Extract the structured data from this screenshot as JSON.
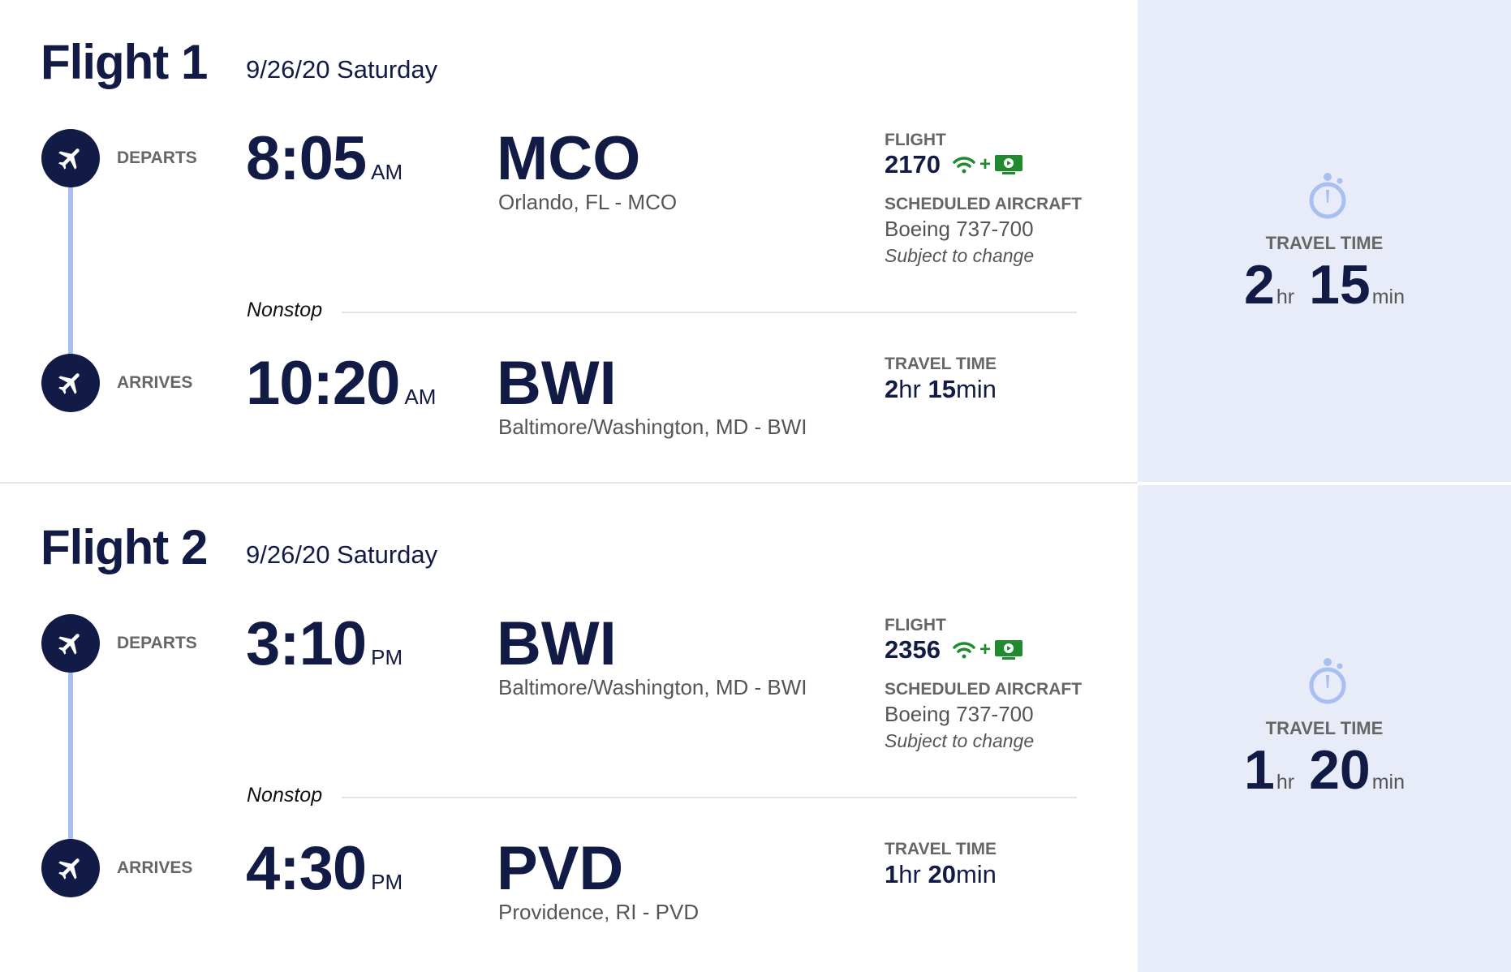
{
  "flights": [
    {
      "title": "Flight 1",
      "date": "9/26/20 Saturday",
      "departs_label": "DEPARTS",
      "arrives_label": "ARRIVES",
      "depart_time": "8:05",
      "depart_ampm": "AM",
      "depart_code": "MCO",
      "depart_city": "Orlando, FL - MCO",
      "arrive_time": "10:20",
      "arrive_ampm": "AM",
      "arrive_code": "BWI",
      "arrive_city": "Baltimore/Washington, MD - BWI",
      "flight_label": "FLIGHT",
      "flight_number": "2170",
      "plus": "+",
      "aircraft_label": "SCHEDULED AIRCRAFT",
      "aircraft": "Boeing 737-700",
      "aircraft_note": "Subject to change",
      "stops": "Nonstop",
      "travel_label": "TRAVEL TIME",
      "travel_hr": "2",
      "travel_min": "15",
      "hr_unit": "hr",
      "min_unit": "min"
    },
    {
      "title": "Flight 2",
      "date": "9/26/20 Saturday",
      "departs_label": "DEPARTS",
      "arrives_label": "ARRIVES",
      "depart_time": "3:10",
      "depart_ampm": "PM",
      "depart_code": "BWI",
      "depart_city": "Baltimore/Washington, MD - BWI",
      "arrive_time": "4:30",
      "arrive_ampm": "PM",
      "arrive_code": "PVD",
      "arrive_city": "Providence, RI - PVD",
      "flight_label": "FLIGHT",
      "flight_number": "2356",
      "plus": "+",
      "aircraft_label": "SCHEDULED AIRCRAFT",
      "aircraft": "Boeing 737-700",
      "aircraft_note": "Subject to change",
      "stops": "Nonstop",
      "travel_label": "TRAVEL TIME",
      "travel_hr": "1",
      "travel_min": "20",
      "hr_unit": "hr",
      "min_unit": "min"
    }
  ],
  "icons": {
    "plane": "airplane-icon",
    "wifi": "wifi-icon",
    "tv": "tv-icon",
    "stopwatch": "stopwatch-icon"
  },
  "colors": {
    "navy": "#111b45",
    "accent_line": "#a9bff2",
    "panel_bg": "#e8ecf8",
    "amenity_green": "#1f8a2e"
  }
}
